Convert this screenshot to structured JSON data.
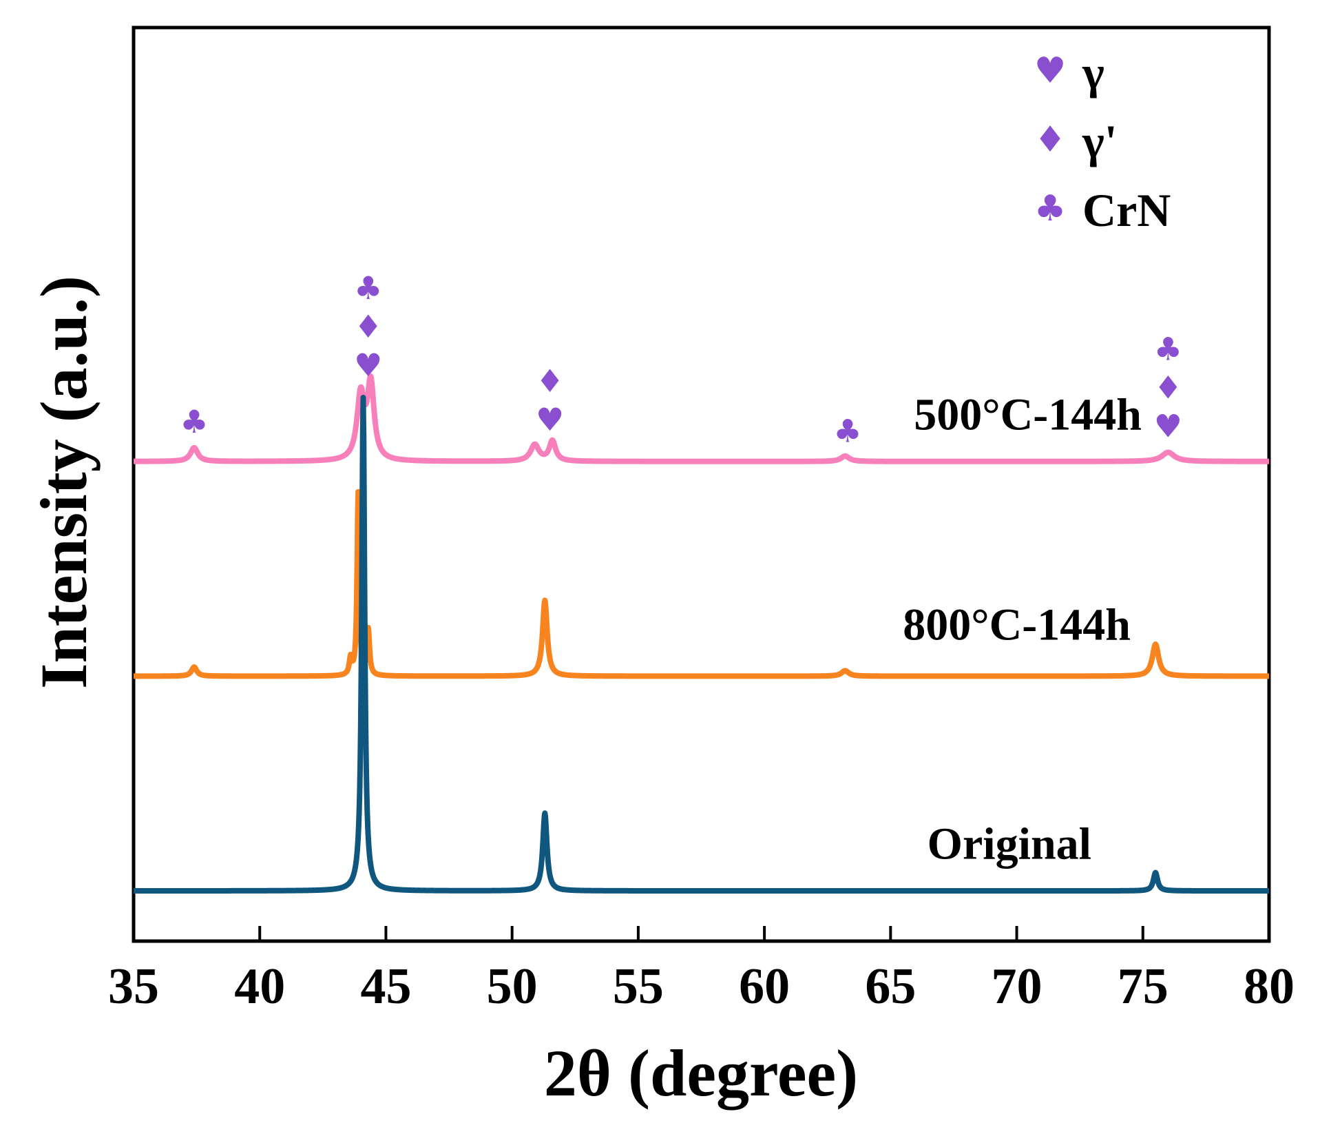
{
  "chart_data": {
    "type": "line",
    "title": "",
    "xlabel": "2θ (degree)",
    "ylabel": "Intensity (a.u.)",
    "xlim": [
      35,
      80
    ],
    "xticks": [
      35,
      40,
      45,
      50,
      55,
      60,
      65,
      70,
      75,
      80
    ],
    "ylim": [
      0,
      1
    ],
    "grid": false,
    "legend_position": "top-right",
    "marker_color": "#8a4fd0",
    "legend": [
      {
        "symbol": "♥",
        "label": "γ"
      },
      {
        "symbol": "♦",
        "label": "γ'"
      },
      {
        "symbol": "♣",
        "label": "CrN"
      }
    ],
    "series": [
      {
        "name": "500°C-144h",
        "label": "500°C-144h",
        "color": "#f77fba",
        "baseline": 0.525,
        "peaks": [
          {
            "x": 37.4,
            "height": 0.015,
            "width": 0.35
          },
          {
            "x": 44.0,
            "height": 0.07,
            "width": 0.35
          },
          {
            "x": 44.4,
            "height": 0.082,
            "width": 0.32
          },
          {
            "x": 50.9,
            "height": 0.018,
            "width": 0.4
          },
          {
            "x": 51.6,
            "height": 0.022,
            "width": 0.3
          },
          {
            "x": 63.2,
            "height": 0.006,
            "width": 0.4
          },
          {
            "x": 76.0,
            "height": 0.01,
            "width": 0.6
          }
        ],
        "markers": [
          {
            "x": 37.4,
            "symbols": [
              "♣"
            ]
          },
          {
            "x": 44.3,
            "symbols": [
              "♥",
              "♦",
              "♣"
            ]
          },
          {
            "x": 51.5,
            "symbols": [
              "♥",
              "♦"
            ]
          },
          {
            "x": 63.3,
            "symbols": [
              "♣"
            ]
          },
          {
            "x": 76.0,
            "symbols": [
              "♥",
              "♦",
              "♣"
            ]
          }
        ]
      },
      {
        "name": "800°C-144h",
        "label": "800°C-144h",
        "color": "#f7841f",
        "baseline": 0.29,
        "peaks": [
          {
            "x": 37.4,
            "height": 0.01,
            "width": 0.25
          },
          {
            "x": 43.6,
            "height": 0.018,
            "width": 0.12
          },
          {
            "x": 43.9,
            "height": 0.2,
            "width": 0.1
          },
          {
            "x": 44.3,
            "height": 0.05,
            "width": 0.12
          },
          {
            "x": 51.3,
            "height": 0.083,
            "width": 0.22
          },
          {
            "x": 63.2,
            "height": 0.006,
            "width": 0.35
          },
          {
            "x": 75.5,
            "height": 0.035,
            "width": 0.3
          }
        ],
        "markers": []
      },
      {
        "name": "Original",
        "label": "Original",
        "color": "#0f577e",
        "baseline": 0.055,
        "peaks": [
          {
            "x": 44.1,
            "height": 0.54,
            "width": 0.14
          },
          {
            "x": 51.3,
            "height": 0.085,
            "width": 0.2
          },
          {
            "x": 75.5,
            "height": 0.02,
            "width": 0.2
          }
        ],
        "markers": []
      }
    ]
  }
}
